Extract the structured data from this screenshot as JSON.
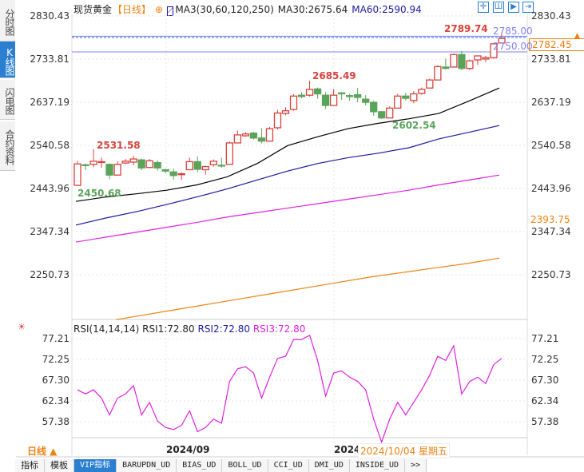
{
  "sidebar": {
    "tabs": [
      {
        "label": "分时图"
      },
      {
        "label": "K线图",
        "selected": true
      },
      {
        "label": "闪电图"
      },
      {
        "label": "合约资料"
      }
    ]
  },
  "header": {
    "symbol": "现货黄金",
    "period": "【日线】",
    "ma_label": "MA3(30,60,120,250)",
    "ma30": "MA30:2675.64",
    "ma60": "MA60:2590.94"
  },
  "toolbar": {
    "icons": [
      "crosshair-icon",
      "candle-toggle-icon",
      "zoom-in-icon",
      "next-icon"
    ]
  },
  "price_axis": [
    "2830.43",
    "2733.81",
    "2637.19",
    "2540.58",
    "2443.96",
    "2347.34",
    "2250.73"
  ],
  "markers": {
    "high": "2789.74",
    "line1": "2785.00",
    "line2": "2750.00",
    "current": "2782.45",
    "ma_right": "2393.75",
    "low_mark1": "2450.68",
    "high_mark1": "2531.58",
    "high_mark2": "2685.49",
    "low_mark2": "2602.54"
  },
  "rsi": {
    "label": "RSI(14,14,14)",
    "rsi1": "RSI1:72.80",
    "rsi2": "RSI2:72.80",
    "rsi3": "RSI3:72.80",
    "axis": [
      "77.21",
      "72.25",
      "67.30",
      "62.34",
      "57.38"
    ],
    "values": [
      65,
      64,
      65,
      63,
      59,
      63,
      64,
      66,
      59,
      62,
      57.5,
      56,
      55.5,
      56.5,
      60,
      55,
      56,
      58,
      57,
      67,
      70,
      70.5,
      69,
      63,
      68,
      72.5,
      73,
      77,
      77,
      78,
      72,
      63.5,
      69,
      69.5,
      68,
      67,
      65,
      58,
      52.5,
      58,
      62,
      59,
      62,
      65,
      68.5,
      73,
      72,
      75.5,
      64,
      67,
      68,
      66.5,
      71,
      72.5
    ]
  },
  "time_axis": {
    "label1": "2024/09",
    "label2": "2024",
    "tooltip": "2024/10/04 星期五"
  },
  "period_button": "日线 ▲",
  "bottom_tabs": [
    "指标",
    "模板",
    "VIP指标",
    "BARUPDN_UD",
    "BIAS_UD",
    "BOLL_UD",
    "CCI_UD",
    "DMI_UD",
    "INSIDE_UD",
    ">>"
  ],
  "colors": {
    "up": "#d9413c",
    "down": "#5aa45a",
    "ma30": "#000000",
    "ma60": "#1a1aa0",
    "ma120": "#e020e0",
    "ma250": "#f08010",
    "accent": "#2a7fd1",
    "orange": "#f08010"
  },
  "chart_data": {
    "type": "candlestick",
    "ylim": [
      2200,
      2840
    ],
    "candles": [
      [
        2451,
        2506,
        2450.68,
        2499
      ],
      [
        2497,
        2500,
        2485,
        2496
      ],
      [
        2498,
        2531.58,
        2492,
        2505
      ],
      [
        2503,
        2513,
        2490,
        2504
      ],
      [
        2498,
        2500,
        2465,
        2474
      ],
      [
        2474,
        2505,
        2474,
        2498
      ],
      [
        2501,
        2510,
        2499,
        2505
      ],
      [
        2503,
        2517,
        2496,
        2510
      ],
      [
        2508,
        2511,
        2485,
        2490
      ],
      [
        2491,
        2510,
        2491,
        2506
      ],
      [
        2502,
        2507,
        2484,
        2490
      ],
      [
        2486,
        2488,
        2478,
        2483
      ],
      [
        2481,
        2489,
        2464,
        2473
      ],
      [
        2475,
        2480,
        2463,
        2477
      ],
      [
        2486,
        2513,
        2486,
        2504
      ],
      [
        2504,
        2516,
        2480,
        2487
      ],
      [
        2486,
        2495,
        2475,
        2493
      ],
      [
        2497,
        2509,
        2493,
        2505
      ],
      [
        2496,
        2513,
        2490,
        2495
      ],
      [
        2498,
        2549,
        2498,
        2546
      ],
      [
        2546,
        2574,
        2546,
        2564
      ],
      [
        2562,
        2570,
        2560,
        2566
      ],
      [
        2568,
        2571,
        2554,
        2557
      ],
      [
        2557,
        2579,
        2545,
        2550
      ],
      [
        2550,
        2582,
        2549,
        2578
      ],
      [
        2580,
        2620,
        2576,
        2613
      ],
      [
        2612,
        2626,
        2608,
        2618
      ],
      [
        2621,
        2655,
        2618,
        2651
      ],
      [
        2653,
        2660,
        2646,
        2650
      ],
      [
        2653,
        2685.49,
        2650,
        2666
      ],
      [
        2667,
        2670,
        2645,
        2656
      ],
      [
        2653,
        2660,
        2622,
        2630
      ],
      [
        2630,
        2667,
        2630,
        2653
      ],
      [
        2658,
        2660,
        2642,
        2656
      ],
      [
        2652,
        2656,
        2640,
        2650
      ],
      [
        2654,
        2669,
        2637,
        2648
      ],
      [
        2644,
        2653,
        2630,
        2637
      ],
      [
        2637,
        2640,
        2607,
        2616
      ],
      [
        2616,
        2617,
        2600,
        2602
      ],
      [
        2602,
        2628,
        2602.54,
        2624
      ],
      [
        2624,
        2656,
        2624,
        2651
      ],
      [
        2651,
        2658,
        2641,
        2646
      ],
      [
        2641,
        2662,
        2635,
        2656
      ],
      [
        2657,
        2670,
        2654,
        2666
      ],
      [
        2669,
        2690,
        2669,
        2687
      ],
      [
        2687,
        2720,
        2687,
        2717
      ],
      [
        2716,
        2735,
        2710,
        2713
      ],
      [
        2716,
        2746,
        2716,
        2744
      ],
      [
        2744,
        2752,
        2709,
        2713
      ],
      [
        2713,
        2733,
        2709,
        2730
      ],
      [
        2732,
        2742,
        2721,
        2741
      ],
      [
        2734,
        2741,
        2727,
        2737
      ],
      [
        2737,
        2770,
        2734,
        2768
      ],
      [
        2770,
        2789.74,
        2770,
        2780
      ]
    ],
    "ma30": [
      2415,
      2425,
      2432,
      2440,
      2452,
      2470,
      2500,
      2540,
      2560,
      2578,
      2590,
      2600,
      2612,
      2640,
      2669
    ],
    "ma60": [
      2362,
      2378,
      2392,
      2408,
      2425,
      2443,
      2463,
      2483,
      2500,
      2513,
      2523,
      2535,
      2555,
      2570,
      2585
    ],
    "ma120": [
      2324,
      2335,
      2346,
      2357,
      2368,
      2380,
      2390,
      2400,
      2410,
      2420,
      2430,
      2440,
      2452,
      2463,
      2474
    ],
    "ma250": [
      2150,
      2162,
      2174,
      2186,
      2198,
      2210,
      2222,
      2234,
      2246,
      2256,
      2266,
      2276,
      2288
    ]
  }
}
